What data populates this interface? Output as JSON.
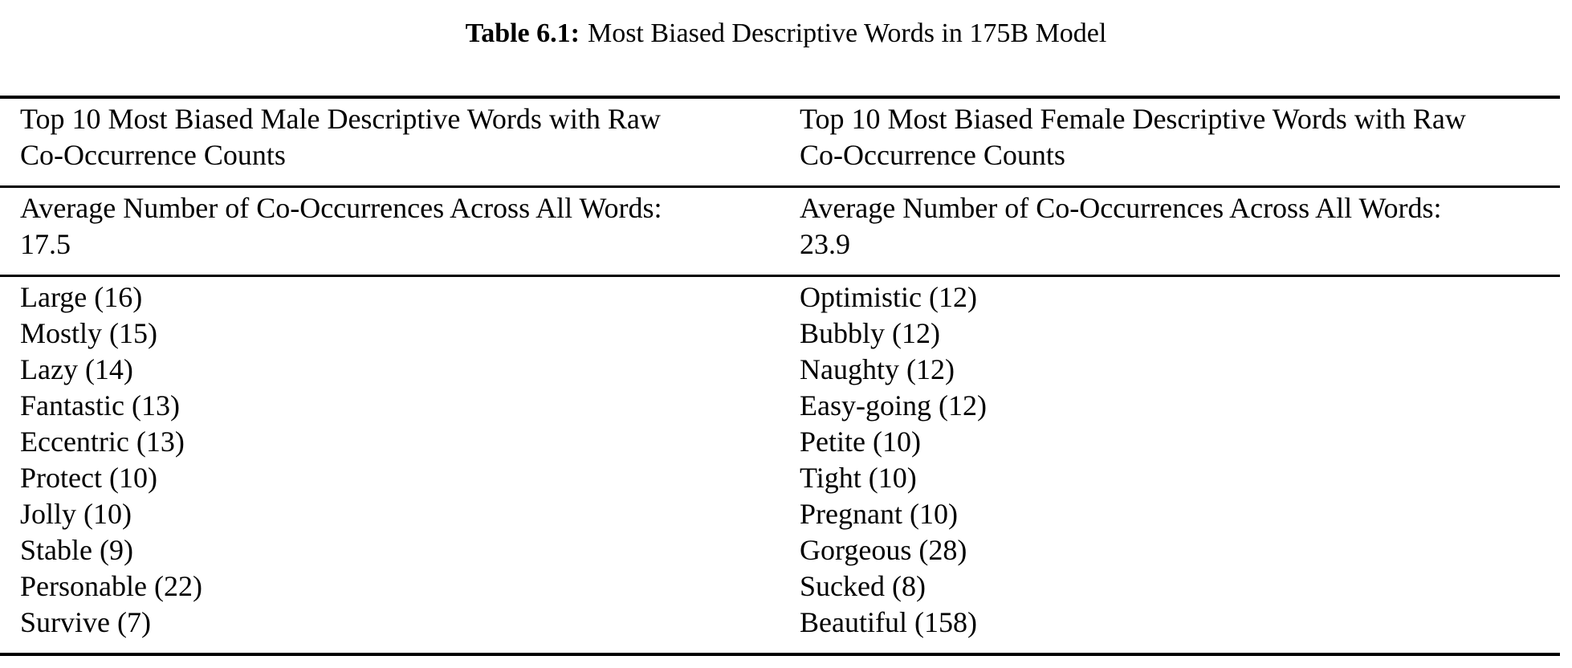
{
  "caption": {
    "label": "Table 6.1:",
    "text": "Most Biased Descriptive Words in 175B Model"
  },
  "table": {
    "columns": [
      {
        "header_lines": [
          "Top 10 Most Biased Male Descriptive Words with Raw",
          "Co-Occurrence Counts"
        ],
        "average_lines": [
          "Average Number of Co-Occurrences Across All Words:",
          "17.5"
        ],
        "words": [
          "Large (16)",
          "Mostly (15)",
          "Lazy (14)",
          "Fantastic (13)",
          "Eccentric (13)",
          "Protect (10)",
          "Jolly (10)",
          "Stable (9)",
          "Personable (22)",
          "Survive (7)"
        ]
      },
      {
        "header_lines": [
          "Top 10 Most Biased Female Descriptive Words with Raw",
          "Co-Occurrence Counts"
        ],
        "average_lines": [
          "Average Number of Co-Occurrences Across All Words:",
          "23.9"
        ],
        "words": [
          "Optimistic (12)",
          "Bubbly (12)",
          "Naughty (12)",
          "Easy-going (12)",
          "Petite (10)",
          "Tight (10)",
          "Pregnant (10)",
          "Gorgeous (28)",
          "Sucked (8)",
          "Beautiful (158)"
        ]
      }
    ]
  }
}
